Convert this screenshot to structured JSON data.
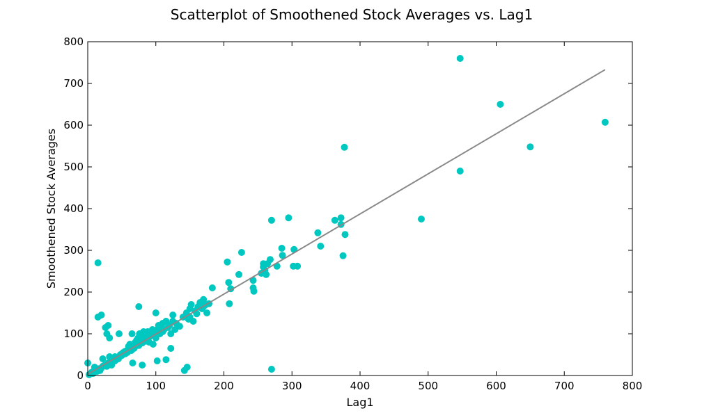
{
  "chart_data": {
    "type": "scatter",
    "title": "Scatterplot of Smoothened Stock Averages vs. Lag1",
    "xlabel": "Lag1",
    "ylabel": "Smoothened Stock Averages",
    "xlim": [
      0,
      800
    ],
    "ylim": [
      0,
      800
    ],
    "x_ticks": [
      0,
      100,
      200,
      300,
      400,
      500,
      600,
      700,
      800
    ],
    "y_ticks": [
      0,
      100,
      200,
      300,
      400,
      500,
      600,
      700,
      800
    ],
    "grid": false,
    "colors": {
      "points": "#00c8c0",
      "fit_line": "#888888",
      "axes": "#000000"
    },
    "fit_line": {
      "x": [
        0,
        760
      ],
      "y": [
        3,
        733
      ]
    },
    "points": [
      [
        0,
        30
      ],
      [
        2,
        2
      ],
      [
        4,
        4
      ],
      [
        6,
        8
      ],
      [
        8,
        5
      ],
      [
        10,
        10
      ],
      [
        10,
        20
      ],
      [
        12,
        12
      ],
      [
        14,
        10
      ],
      [
        15,
        270
      ],
      [
        15,
        140
      ],
      [
        16,
        16
      ],
      [
        18,
        12
      ],
      [
        20,
        145
      ],
      [
        20,
        18
      ],
      [
        22,
        22
      ],
      [
        22,
        40
      ],
      [
        25,
        25
      ],
      [
        26,
        115
      ],
      [
        28,
        100
      ],
      [
        28,
        22
      ],
      [
        30,
        30
      ],
      [
        30,
        120
      ],
      [
        32,
        90
      ],
      [
        32,
        45
      ],
      [
        34,
        34
      ],
      [
        35,
        25
      ],
      [
        38,
        40
      ],
      [
        40,
        35
      ],
      [
        40,
        45
      ],
      [
        42,
        42
      ],
      [
        45,
        40
      ],
      [
        46,
        100
      ],
      [
        48,
        50
      ],
      [
        50,
        48
      ],
      [
        52,
        55
      ],
      [
        55,
        58
      ],
      [
        55,
        52
      ],
      [
        58,
        60
      ],
      [
        58,
        55
      ],
      [
        60,
        65
      ],
      [
        60,
        70
      ],
      [
        62,
        62
      ],
      [
        62,
        75
      ],
      [
        64,
        60
      ],
      [
        65,
        68
      ],
      [
        65,
        100
      ],
      [
        66,
        30
      ],
      [
        68,
        65
      ],
      [
        68,
        72
      ],
      [
        70,
        70
      ],
      [
        70,
        80
      ],
      [
        72,
        75
      ],
      [
        72,
        85
      ],
      [
        74,
        90
      ],
      [
        75,
        165
      ],
      [
        75,
        72
      ],
      [
        76,
        100
      ],
      [
        78,
        80
      ],
      [
        78,
        95
      ],
      [
        80,
        78
      ],
      [
        80,
        100
      ],
      [
        80,
        25
      ],
      [
        82,
        85
      ],
      [
        82,
        105
      ],
      [
        84,
        82
      ],
      [
        85,
        90
      ],
      [
        86,
        95
      ],
      [
        88,
        88
      ],
      [
        88,
        105
      ],
      [
        90,
        80
      ],
      [
        90,
        92
      ],
      [
        92,
        100
      ],
      [
        94,
        96
      ],
      [
        95,
        110
      ],
      [
        96,
        75
      ],
      [
        98,
        100
      ],
      [
        100,
        150
      ],
      [
        100,
        105
      ],
      [
        100,
        90
      ],
      [
        102,
        35
      ],
      [
        102,
        110
      ],
      [
        104,
        120
      ],
      [
        106,
        100
      ],
      [
        108,
        115
      ],
      [
        110,
        105
      ],
      [
        110,
        125
      ],
      [
        112,
        110
      ],
      [
        115,
        130
      ],
      [
        115,
        38
      ],
      [
        118,
        115
      ],
      [
        120,
        120
      ],
      [
        122,
        100
      ],
      [
        122,
        65
      ],
      [
        125,
        145
      ],
      [
        125,
        130
      ],
      [
        128,
        110
      ],
      [
        130,
        125
      ],
      [
        132,
        120
      ],
      [
        135,
        118
      ],
      [
        140,
        140
      ],
      [
        142,
        12
      ],
      [
        145,
        150
      ],
      [
        146,
        20
      ],
      [
        148,
        135
      ],
      [
        150,
        160
      ],
      [
        150,
        140
      ],
      [
        152,
        170
      ],
      [
        155,
        130
      ],
      [
        158,
        155
      ],
      [
        160,
        148
      ],
      [
        162,
        165
      ],
      [
        165,
        175
      ],
      [
        168,
        160
      ],
      [
        170,
        182
      ],
      [
        172,
        168
      ],
      [
        175,
        150
      ],
      [
        178,
        172
      ],
      [
        183,
        210
      ],
      [
        205,
        272
      ],
      [
        207,
        223
      ],
      [
        208,
        172
      ],
      [
        210,
        208
      ],
      [
        222,
        242
      ],
      [
        226,
        295
      ],
      [
        243,
        210
      ],
      [
        243,
        228
      ],
      [
        244,
        202
      ],
      [
        255,
        245
      ],
      [
        258,
        260
      ],
      [
        258,
        268
      ],
      [
        260,
        252
      ],
      [
        262,
        242
      ],
      [
        264,
        268
      ],
      [
        268,
        278
      ],
      [
        270,
        372
      ],
      [
        270,
        15
      ],
      [
        278,
        262
      ],
      [
        285,
        305
      ],
      [
        286,
        288
      ],
      [
        295,
        378
      ],
      [
        302,
        262
      ],
      [
        303,
        302
      ],
      [
        308,
        262
      ],
      [
        338,
        342
      ],
      [
        342,
        310
      ],
      [
        363,
        372
      ],
      [
        372,
        378
      ],
      [
        372,
        362
      ],
      [
        375,
        287
      ],
      [
        377,
        547
      ],
      [
        378,
        338
      ],
      [
        490,
        375
      ],
      [
        547,
        490
      ],
      [
        547,
        760
      ],
      [
        606,
        650
      ],
      [
        650,
        548
      ],
      [
        760,
        607
      ]
    ]
  }
}
